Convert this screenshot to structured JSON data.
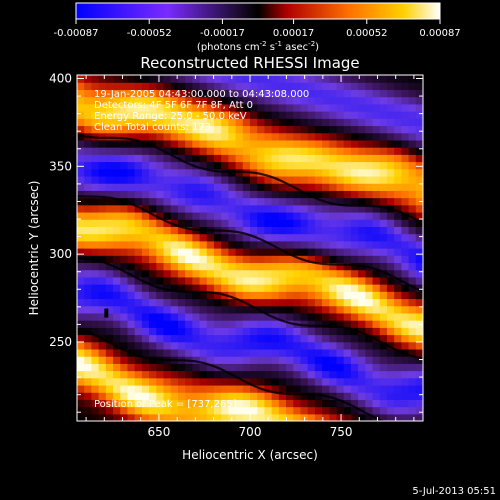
{
  "chart_data": {
    "type": "heatmap",
    "title": "Reconstructed RHESSI Image",
    "xlabel": "Heliocentric X (arcsec)",
    "ylabel": "Heliocentric Y (arcsec)",
    "xlim": [
      605,
      795
    ],
    "ylim": [
      205,
      402
    ],
    "x_ticks": [
      650,
      700,
      750
    ],
    "y_ticks": [
      250,
      300,
      350,
      400
    ],
    "colorbar": {
      "ticks": [
        "-0.00087",
        "-0.00052",
        "-0.00017",
        "0.00017",
        "0.00052",
        "0.00087"
      ],
      "range": [
        -0.00087,
        0.00087
      ],
      "unit_base": "(photons cm",
      "unit_exp1": "-2",
      "unit_mid": " s",
      "unit_exp2": "-1",
      "unit_mid2": " asec",
      "unit_exp3": "-2",
      "unit_end": ")"
    },
    "annotations": [
      "19-Jan-2005 04:43:00.000 to 04:43:08.000",
      "Detectors: 4F 5F 6F 7F 8F, Att 0",
      "Energy Range: 25.0 - 50.0 keV",
      "Clean     Total counts: 173."
    ],
    "peak_label": "Position of Peak = [737,265]",
    "peak": [
      737,
      265
    ],
    "bands": [
      {
        "sign": 1,
        "y_at_605": 390,
        "slope": -0.28,
        "width": 14
      },
      {
        "sign": -1,
        "y_at_605": 352,
        "slope": -0.28,
        "width": 14
      },
      {
        "sign": 1,
        "y_at_605": 317,
        "slope": -0.28,
        "width": 13
      },
      {
        "sign": -1,
        "y_at_605": 276,
        "slope": -0.28,
        "width": 15
      },
      {
        "sign": 1,
        "y_at_605": 233,
        "slope": -0.28,
        "width": 14
      }
    ]
  },
  "footer": {
    "date": "5-Jul-2013 05:51"
  }
}
